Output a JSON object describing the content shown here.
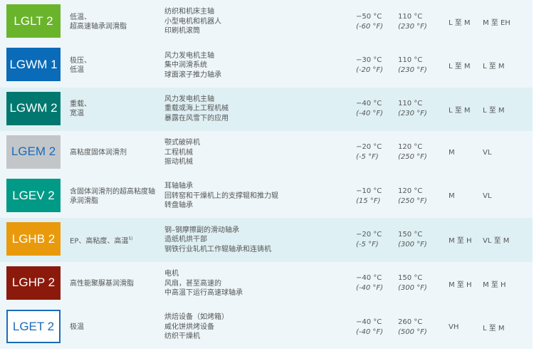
{
  "rows": [
    {
      "name": "LGLT 2",
      "color": "#6ab42c",
      "text_color": "#ffffff",
      "desc": [
        "低温、",
        "超高速轴承润滑脂"
      ],
      "apps": [
        "纺织和机床主轴",
        "小型电机和机器人",
        "印刷机滚筒"
      ],
      "min_c": "−50 °C",
      "min_f": "(-60 °F)",
      "max_c": "110 °C",
      "max_f": "(230 °F)",
      "col1": "L 至 M",
      "col2": "M 至 EH",
      "highlight": false
    },
    {
      "name": "LGWM 1",
      "color": "#0a6bb8",
      "text_color": "#ffffff",
      "desc": [
        "极压、",
        "低温"
      ],
      "apps": [
        "风力发电机主轴",
        "集中润滑系统",
        "球面滚子推力轴承"
      ],
      "min_c": "−30 °C",
      "min_f": "(-20 °F)",
      "max_c": "110 °C",
      "max_f": "(230 °F)",
      "col1": "L 至 M",
      "col2": "L 至 M",
      "highlight": false
    },
    {
      "name": "LGWM 2",
      "color": "#00786f",
      "text_color": "#ffffff",
      "desc": [
        "重载、",
        "宽温"
      ],
      "apps": [
        "风力发电机主轴",
        "重载或海上工程机械",
        "暴露在风雪下的应用"
      ],
      "min_c": "−40 °C",
      "min_f": "(-40 °F)",
      "max_c": "110 °C",
      "max_f": "(230 °F)",
      "col1": "L 至 M",
      "col2": "L 至 M",
      "highlight": true
    },
    {
      "name": "LGEM 2",
      "color": "#c3c6c9",
      "text_color": "#1a6bb8",
      "desc": [
        "高粘度固体润滑剂"
      ],
      "apps": [
        "颚式破碎机",
        "工程机械",
        "振动机械"
      ],
      "min_c": "−20 °C",
      "min_f": "(-5 °F)",
      "max_c": "120 °C",
      "max_f": "(250 °F)",
      "col1": "M",
      "col2": "VL",
      "highlight": false
    },
    {
      "name": "LGEV 2",
      "color": "#009a86",
      "text_color": "#ffffff",
      "desc": [
        "含固体润滑剂的超高粘度轴承润滑脂"
      ],
      "apps": [
        "耳轴轴承",
        "回转窑和干燥机上的支撑辊和推力辊",
        "转盘轴承"
      ],
      "min_c": "−10 °C",
      "min_f": "(15 °F)",
      "max_c": "120 °C",
      "max_f": "(250 °F)",
      "col1": "M",
      "col2": "VL",
      "highlight": false
    },
    {
      "name": "LGHB 2",
      "color": "#e99a0c",
      "text_color": "#ffffff",
      "desc": [
        "EP、高粘度、高温"
      ],
      "desc_note": "5)",
      "apps": [
        "钢–钢摩擦副的滑动轴承",
        "造纸机烘干部",
        "钢铁行业轧机工作辊轴承和连铸机"
      ],
      "min_c": "−20 °C",
      "min_f": "(-5 °F)",
      "max_c": "150 °C",
      "max_f": "(300 °F)",
      "col1": "M 至 H",
      "col2": "VL 至 M",
      "highlight": true
    },
    {
      "name": "LGHP 2",
      "color": "#8b1a0c",
      "text_color": "#ffffff",
      "desc": [
        "高性能聚脲基润滑脂"
      ],
      "apps": [
        "电机",
        "风扇，甚至高速的",
        "中高温下运行高速球轴承"
      ],
      "min_c": "−40 °C",
      "min_f": "(-40 °F)",
      "max_c": "150 °C",
      "max_f": "(300 °F)",
      "col1": "M 至 H",
      "col2": "M 至 H",
      "highlight": false
    },
    {
      "name": "LGET 2",
      "color": "#ffffff",
      "text_color": "#1a6bb8",
      "border": "#1a6bb8",
      "desc": [
        "极温"
      ],
      "apps": [
        "烘焙设备（如烤箱）",
        "威化饼烘烤设备",
        "纺织干燥机"
      ],
      "min_c": "−40 °C",
      "min_f": "(-40 °F)",
      "max_c": "260 °C",
      "max_f": "(500 °F)",
      "col1": "VH",
      "col2": "L 至 M",
      "highlight": false
    }
  ]
}
